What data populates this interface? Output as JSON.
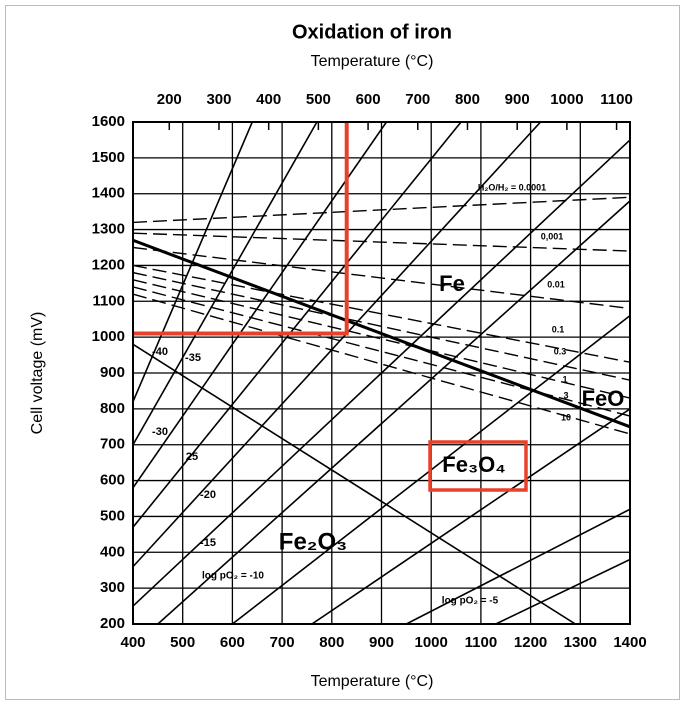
{
  "chart_data": {
    "type": "line",
    "title": "Oxidation of iron",
    "x2_label": "Temperature (°C)",
    "x_label": "Temperature (°C)",
    "y_label": "Cell voltage (mV)",
    "xlim": [
      400,
      1400
    ],
    "xticks": [
      400,
      500,
      600,
      700,
      800,
      900,
      1000,
      1100,
      1200,
      1300,
      1400
    ],
    "x2lim": [
      127,
      1127
    ],
    "x2ticks": [
      200,
      300,
      400,
      500,
      600,
      700,
      800,
      900,
      1000,
      1100
    ],
    "ylim": [
      200,
      1600
    ],
    "yticks": [
      200,
      300,
      400,
      500,
      600,
      700,
      800,
      900,
      1000,
      1100,
      1200,
      1300,
      1400,
      1500,
      1600
    ],
    "grid": true,
    "series": [
      {
        "x": [
          400,
          640
        ],
        "values": [
          820,
          1600
        ],
        "color": "#000",
        "width": 1.6
      },
      {
        "x": [
          400,
          770
        ],
        "values": [
          700,
          1600
        ],
        "color": "#000",
        "width": 1.6
      },
      {
        "x": [
          400,
          910
        ],
        "values": [
          580,
          1600
        ],
        "color": "#000",
        "width": 1.6
      },
      {
        "x": [
          400,
          1060
        ],
        "values": [
          470,
          1600
        ],
        "color": "#000",
        "width": 1.6
      },
      {
        "x": [
          400,
          1220
        ],
        "values": [
          360,
          1600
        ],
        "color": "#000",
        "width": 1.6
      },
      {
        "x": [
          400,
          1400
        ],
        "values": [
          250,
          1550
        ],
        "color": "#000",
        "width": 1.6
      },
      {
        "x": [
          450,
          1400
        ],
        "values": [
          200,
          1380
        ],
        "color": "#000",
        "width": 1.6
      },
      {
        "x": [
          600,
          1400
        ],
        "values": [
          200,
          1060
        ],
        "color": "#000",
        "width": 1.6
      },
      {
        "x": [
          760,
          1400
        ],
        "values": [
          200,
          800
        ],
        "color": "#000",
        "width": 1.6
      },
      {
        "x": [
          950,
          1400
        ],
        "values": [
          200,
          520
        ],
        "color": "#000",
        "width": 1.6
      },
      {
        "x": [
          1130,
          1400
        ],
        "values": [
          200,
          380
        ],
        "color": "#000",
        "width": 1.6
      },
      {
        "x": [
          400,
          1400
        ],
        "values": [
          1270,
          750
        ],
        "color": "#000",
        "width": 3
      },
      {
        "x": [
          400,
          1290
        ],
        "values": [
          980,
          200
        ],
        "color": "#000",
        "width": 1.6
      },
      {
        "x": [
          400,
          1400
        ],
        "values": [
          1320,
          1390
        ],
        "color": "#000",
        "width": 1.4,
        "dash": true
      },
      {
        "x": [
          400,
          1400
        ],
        "values": [
          1290,
          1240
        ],
        "color": "#000",
        "width": 1.4,
        "dash": true
      },
      {
        "x": [
          400,
          1400
        ],
        "values": [
          1250,
          1080
        ],
        "color": "#000",
        "width": 1.4,
        "dash": true
      },
      {
        "x": [
          400,
          1400
        ],
        "values": [
          1200,
          930
        ],
        "color": "#000",
        "width": 1.4,
        "dash": true
      },
      {
        "x": [
          400,
          1400
        ],
        "values": [
          1180,
          880
        ],
        "color": "#000",
        "width": 1.4,
        "dash": true
      },
      {
        "x": [
          400,
          1400
        ],
        "values": [
          1160,
          830
        ],
        "color": "#000",
        "width": 1.4,
        "dash": true
      },
      {
        "x": [
          400,
          1400
        ],
        "values": [
          1140,
          780
        ],
        "color": "#000",
        "width": 1.4,
        "dash": true
      },
      {
        "x": [
          400,
          1400
        ],
        "values": [
          1120,
          730
        ],
        "color": "#000",
        "width": 1.4,
        "dash": true
      },
      {
        "x": [
          400,
          830,
          830
        ],
        "values": [
          1010,
          1010,
          1600
        ],
        "color": "#e8402a",
        "width": 4
      }
    ],
    "annotations": [
      "-40",
      "-35",
      "-30",
      "25",
      "-20",
      "-15",
      "log pO₂ = -10",
      "log pO₂ = -5",
      "Fe",
      "FeO",
      "Fe₃O₄",
      "Fe₂O₃",
      "H₂O/H₂ = 0.0001",
      "0,001",
      "0.01",
      "0.1",
      "0.3",
      "1",
      "3",
      "10"
    ]
  }
}
